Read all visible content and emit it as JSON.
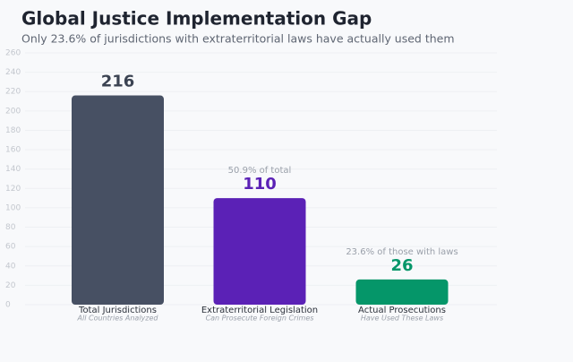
{
  "chart_data": {
    "type": "bar",
    "title": "Global Justice Implementation Gap",
    "subtitle": "Only 23.6% of jurisdictions with extraterritorial laws have actually used them",
    "categories": [
      "Total Jurisdictions",
      "Extraterritorial Legislation",
      "Actual Prosecutions"
    ],
    "sublabels": [
      "All Countries Analyzed",
      "Can Prosecute Foreign Crimes",
      "Have Used These Laws"
    ],
    "values": [
      216,
      110,
      26
    ],
    "colors": [
      "#475063",
      "#5b21b6",
      "#059669"
    ],
    "annotations": [
      null,
      "50.9% of total",
      "23.6% of those with laws"
    ],
    "ylim": [
      0,
      260
    ],
    "yticks": [
      0,
      20,
      40,
      60,
      80,
      100,
      120,
      140,
      160,
      180,
      200,
      220,
      240,
      260
    ],
    "grid": true
  }
}
